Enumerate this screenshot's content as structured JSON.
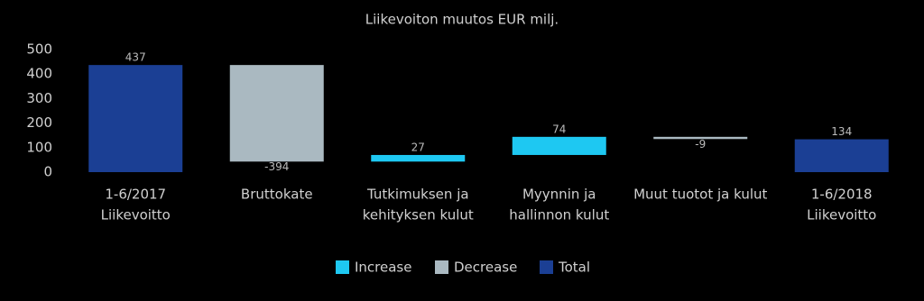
{
  "chart_data": {
    "type": "waterfall",
    "title": "Liikevoiton muutos EUR milj.",
    "categories": [
      [
        "1-6/2017",
        "Liikevoitto"
      ],
      [
        "Bruttokate"
      ],
      [
        "Tutkimuksen ja",
        "kehityksen kulut"
      ],
      [
        "Myynnin ja",
        "hallinnon kulut"
      ],
      [
        "Muut tuotot ja kulut"
      ],
      [
        "1-6/2018",
        "Liikevoitto"
      ]
    ],
    "series": [
      {
        "name": "Increase",
        "color": "#1ec8f2",
        "values": [
          null,
          null,
          27,
          74,
          null,
          null
        ]
      },
      {
        "name": "Decrease",
        "color": "#aab9c1",
        "values": [
          null,
          -394,
          null,
          null,
          -9,
          null
        ]
      },
      {
        "name": "Total",
        "color": "#1b3f94",
        "values": [
          437,
          null,
          null,
          null,
          null,
          134
        ]
      }
    ],
    "ylim": [
      0,
      500
    ],
    "yticks": [
      0,
      100,
      200,
      300,
      400,
      500
    ],
    "grid": false
  }
}
